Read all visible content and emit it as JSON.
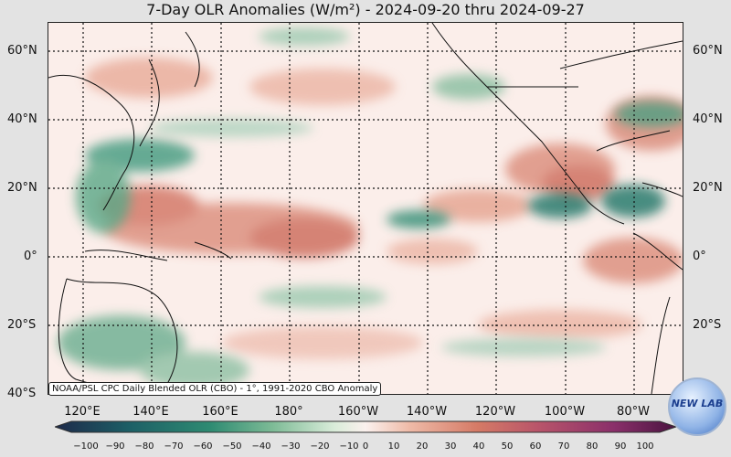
{
  "title": "7-Day OLR Anomalies (W/m²) - 2024-09-20 thru 2024-09-27",
  "map": {
    "lat_labels": [
      "60°N",
      "40°N",
      "20°N",
      "0°",
      "20°S",
      "40°S"
    ],
    "lon_labels": [
      "120°E",
      "140°E",
      "160°E",
      "180°",
      "160°W",
      "140°W",
      "120°W",
      "100°W",
      "80°W"
    ],
    "lat_range": [
      -40,
      67
    ],
    "lon_range": [
      106,
      290
    ],
    "colors": {
      "negative": "#2e8b72",
      "positive": "#c9604f",
      "neutral": "#fbeeea"
    }
  },
  "source_note": "NOAA/PSL CPC Daily Blended OLR (CBO) - 1°, 1991-2020 CBO Anomaly",
  "colorbar": {
    "ticks": [
      "−100",
      "−90",
      "−80",
      "−70",
      "−60",
      "−50",
      "−40",
      "−30",
      "−20",
      "−10",
      "0",
      "10",
      "20",
      "30",
      "40",
      "50",
      "60",
      "70",
      "80",
      "90",
      "100"
    ],
    "range": [
      -100,
      100
    ],
    "colors": [
      "#1e2a4a",
      "#1d5f66",
      "#2e8b72",
      "#7dbb96",
      "#d9ecd9",
      "#fbf1ee",
      "#efbba8",
      "#d57a66",
      "#b8546a",
      "#8a2f6a",
      "#4a1440"
    ]
  },
  "logo": {
    "text": "NEW LAB",
    "icon": "noaa-psl-logo-icon"
  }
}
